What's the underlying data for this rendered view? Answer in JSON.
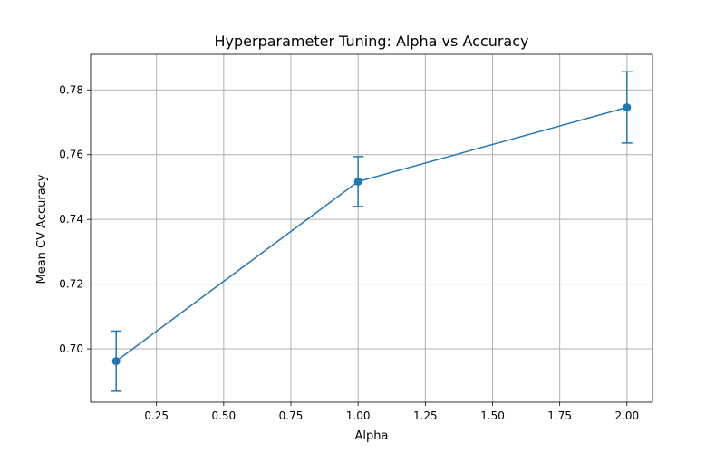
{
  "chart_data": {
    "type": "line",
    "title": "Hyperparameter Tuning: Alpha vs Accuracy",
    "xlabel": "Alpha",
    "ylabel": "Mean CV Accuracy",
    "xlim": [
      0.005,
      2.095
    ],
    "ylim": [
      0.6835,
      0.791
    ],
    "x_ticks": [
      0.25,
      0.5,
      0.75,
      1.0,
      1.25,
      1.5,
      1.75,
      2.0
    ],
    "x_tick_labels": [
      "0.25",
      "0.50",
      "0.75",
      "1.00",
      "1.25",
      "1.50",
      "1.75",
      "2.00"
    ],
    "y_ticks": [
      0.7,
      0.72,
      0.74,
      0.76,
      0.78
    ],
    "y_tick_labels": [
      "0.70",
      "0.72",
      "0.74",
      "0.76",
      "0.78"
    ],
    "grid": true,
    "series": [
      {
        "x": [
          0.1,
          1.0,
          2.0
        ],
        "values": [
          0.6962,
          0.7517,
          0.7746
        ],
        "error": [
          0.0093,
          0.0077,
          0.011
        ],
        "color": "#1f77b4",
        "marker": "circle"
      }
    ]
  }
}
